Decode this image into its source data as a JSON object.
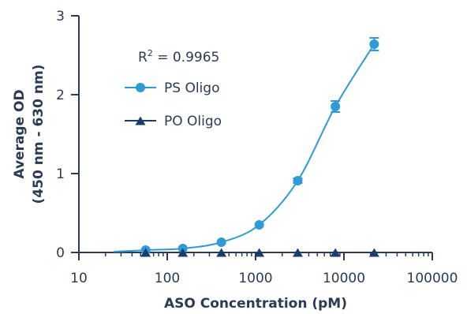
{
  "chart_data": {
    "type": "scatter",
    "xlabel": "ASO Concentration (pM)",
    "ylabel_lines": [
      "Average OD",
      "(450 nm - 630 nm)"
    ],
    "xscale": "log",
    "xlim": [
      10,
      100000
    ],
    "ylim": [
      0,
      3
    ],
    "x_tick_values": [
      10,
      100,
      1000,
      10000,
      100000
    ],
    "x_tick_labels": [
      "10",
      "100",
      "1000",
      "10000",
      "100000"
    ],
    "y_tick_values": [
      0,
      1,
      2,
      3
    ],
    "y_tick_labels": [
      "0",
      "1",
      "2",
      "3"
    ],
    "annotation": {
      "prefix": "R",
      "superscript": "2",
      "suffix": " = 0.9965"
    },
    "legend_position": "top-left",
    "colors": {
      "axis": "#2b3a55",
      "ps": "#2e9bd6",
      "po": "#1b3d6e"
    },
    "series": [
      {
        "name": "PS Oligo",
        "marker": "circle",
        "fit_curve": true,
        "x": [
          57,
          150,
          410,
          1100,
          3000,
          8000,
          22000
        ],
        "y": [
          0.03,
          0.05,
          0.13,
          0.35,
          0.91,
          1.85,
          2.64
        ],
        "err": [
          0.01,
          0.01,
          0.01,
          0.02,
          0.03,
          0.07,
          0.08
        ]
      },
      {
        "name": "PO Oligo",
        "marker": "triangle",
        "fit_curve": false,
        "x": [
          57,
          150,
          410,
          1100,
          3000,
          8000,
          22000
        ],
        "y": [
          0,
          0,
          0,
          0,
          0,
          0,
          0
        ]
      }
    ]
  }
}
